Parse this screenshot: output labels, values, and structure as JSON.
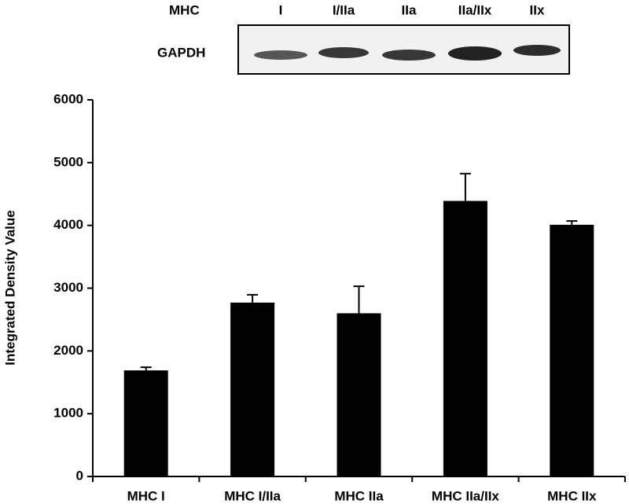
{
  "blot": {
    "row_labels": [
      "MHC",
      "GAPDH"
    ],
    "lanes": [
      "I",
      "I/IIa",
      "IIa",
      "IIa/IIx",
      "IIx"
    ]
  },
  "chart_data": {
    "type": "bar",
    "ylabel": "Integrated Density Value",
    "categories": [
      "MHC I",
      "MHC I/IIa",
      "MHC IIa",
      "MHC IIa/IIx",
      "MHC IIx"
    ],
    "values": [
      1690,
      2770,
      2600,
      4390,
      4010
    ],
    "errors": [
      50,
      125,
      430,
      435,
      60
    ],
    "color": "#000000",
    "ylim": [
      0,
      6000
    ],
    "yticks": [
      0,
      1000,
      2000,
      3000,
      4000,
      5000,
      6000
    ]
  }
}
